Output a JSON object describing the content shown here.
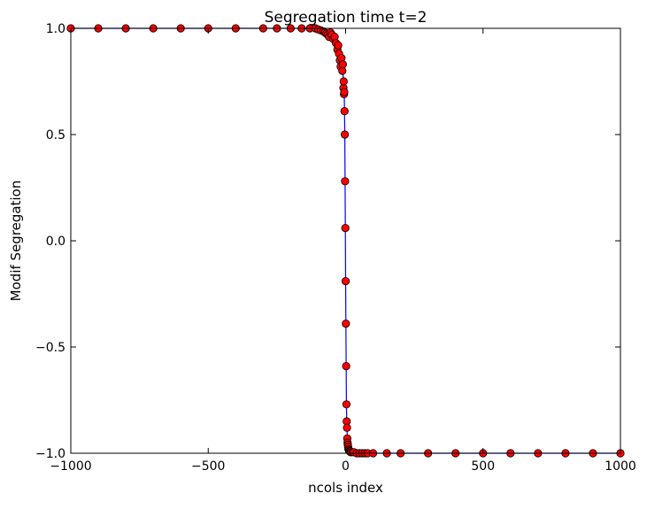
{
  "chart_data": {
    "type": "scatter",
    "title": "Segregation time t=2",
    "xlabel": "ncols index",
    "ylabel": "Modif Segregation",
    "xlim": [
      -1000,
      1000
    ],
    "ylim": [
      -1.0,
      1.0
    ],
    "x_ticks": [
      -1000,
      -500,
      0,
      500,
      1000
    ],
    "x_tick_labels": [
      "−1000",
      "−500",
      "0",
      "500",
      "1000"
    ],
    "y_ticks": [
      1.0,
      0.5,
      0.0,
      -0.5,
      -1.0
    ],
    "y_tick_labels": [
      "1.0",
      "0.5",
      "0.0",
      "−0.5",
      "−1.0"
    ],
    "grid": false,
    "line_color": "#0000ff",
    "marker_color": "#ff0000",
    "marker_edge_color": "#000000",
    "series": [
      {
        "x": [
          -1000,
          -900,
          -800,
          -700,
          -600,
          -500,
          -400,
          -300,
          -250,
          -200,
          -160,
          -130,
          -110,
          -100,
          -90,
          -80,
          -75,
          -70,
          -65,
          -60,
          -55,
          -50,
          -45,
          -40,
          -35,
          -30,
          -27,
          -24,
          -21,
          -18,
          -15,
          -12,
          -10,
          -8,
          -7,
          -6,
          -5,
          -4,
          -3,
          -2,
          -1,
          0,
          1,
          2,
          3,
          4,
          5,
          6,
          7,
          8,
          9,
          10,
          12,
          14,
          16,
          18,
          20,
          25,
          30,
          40,
          50,
          60,
          70,
          80,
          100,
          150,
          200,
          300,
          400,
          500,
          600,
          700,
          800,
          900,
          1000
        ],
        "y": [
          1.0,
          1.0,
          1.0,
          1.0,
          1.0,
          1.0,
          1.0,
          1.0,
          1.0,
          1.0,
          1.0,
          1.0,
          1.0,
          0.995,
          0.99,
          0.985,
          0.98,
          0.975,
          0.97,
          0.96,
          0.98,
          0.97,
          0.95,
          0.96,
          0.93,
          0.9,
          0.92,
          0.88,
          0.85,
          0.82,
          0.86,
          0.8,
          0.83,
          0.72,
          0.75,
          0.69,
          0.7,
          0.61,
          0.5,
          0.28,
          0.06,
          -0.19,
          -0.39,
          -0.59,
          -0.77,
          -0.85,
          -0.88,
          -0.93,
          -0.95,
          -0.96,
          -0.97,
          -0.98,
          -0.985,
          -0.99,
          -0.99,
          -0.995,
          -0.995,
          -0.995,
          -0.995,
          -1.0,
          -1.0,
          -1.0,
          -1.0,
          -1.0,
          -1.0,
          -1.0,
          -1.0,
          -1.0,
          -1.0,
          -1.0,
          -1.0,
          -1.0,
          -1.0,
          -1.0,
          -1.0
        ]
      }
    ]
  }
}
